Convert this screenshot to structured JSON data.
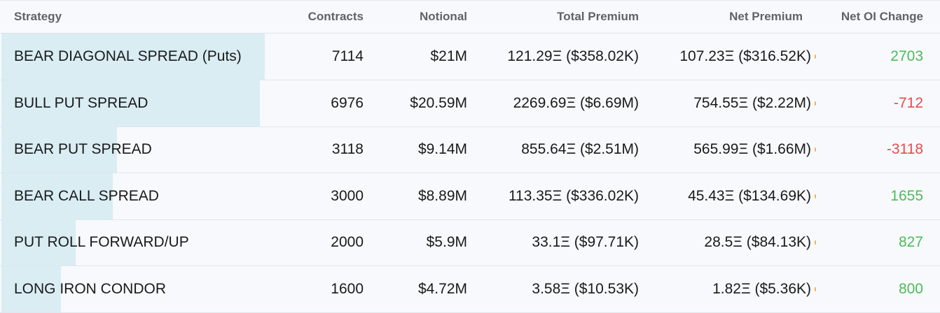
{
  "columns": [
    "Strategy",
    "Contracts",
    "Notional",
    "Total Premium",
    "Net Premium",
    "Net OI Change"
  ],
  "colors": {
    "positive": "#4cbb5a",
    "negative": "#e34d4d",
    "bar": "#d9edf3"
  },
  "rows": [
    {
      "strategy": "BEAR DIAGONAL SPREAD (Puts)",
      "contracts": "7114",
      "notional": "$21M",
      "total_premium": "121.29Ξ ($358.02K)",
      "net_premium": "107.23Ξ ($316.52K)",
      "net_oi_change": "2703"
    },
    {
      "strategy": "BULL PUT SPREAD",
      "contracts": "6976",
      "notional": "$20.59M",
      "total_premium": "2269.69Ξ ($6.69M)",
      "net_premium": "754.55Ξ ($2.22M)",
      "net_oi_change": "-712"
    },
    {
      "strategy": "BEAR PUT SPREAD",
      "contracts": "3118",
      "notional": "$9.14M",
      "total_premium": "855.64Ξ ($2.51M)",
      "net_premium": "565.99Ξ ($1.66M)",
      "net_oi_change": "-3118"
    },
    {
      "strategy": "BEAR CALL SPREAD",
      "contracts": "3000",
      "notional": "$8.89M",
      "total_premium": "113.35Ξ ($336.02K)",
      "net_premium": "45.43Ξ ($134.69K)",
      "net_oi_change": "1655"
    },
    {
      "strategy": "PUT ROLL FORWARD/UP",
      "contracts": "2000",
      "notional": "$5.9M",
      "total_premium": "33.1Ξ ($97.71K)",
      "net_premium": "28.5Ξ ($84.13K)",
      "net_oi_change": "827"
    },
    {
      "strategy": "LONG IRON CONDOR",
      "contracts": "1600",
      "notional": "$4.72M",
      "total_premium": "3.58Ξ ($10.53K)",
      "net_premium": "1.82Ξ ($5.36K)",
      "net_oi_change": "800"
    }
  ]
}
